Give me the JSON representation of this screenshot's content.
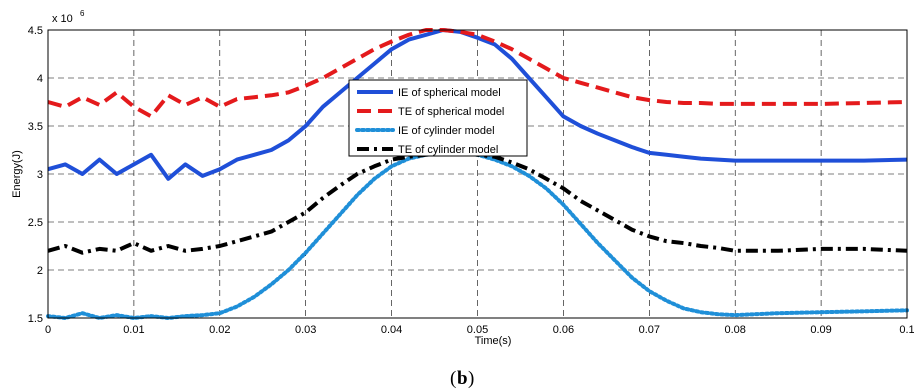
{
  "caption": {
    "open": "(",
    "letter": "b",
    "close": ")"
  },
  "chart_data": {
    "type": "line",
    "xlabel": "Time(s)",
    "ylabel": "Energy(J)",
    "y_multiplier_base": "x 10",
    "y_multiplier_exp": "6",
    "xlim": [
      0,
      0.1
    ],
    "ylim": [
      1.5,
      4.5
    ],
    "xticks": [
      "0",
      "0.01",
      "0.02",
      "0.03",
      "0.04",
      "0.05",
      "0.06",
      "0.07",
      "0.08",
      "0.09",
      "0.1"
    ],
    "yticks": [
      "1.5",
      "2",
      "2.5",
      "3",
      "3.5",
      "4",
      "4.5"
    ],
    "grid": true,
    "legend_position": "inside-top-center",
    "series": [
      {
        "name": "IE of spherical model",
        "color": "#1f4fd8",
        "style": "solid",
        "x": [
          0,
          0.002,
          0.004,
          0.006,
          0.008,
          0.01,
          0.012,
          0.014,
          0.016,
          0.018,
          0.02,
          0.022,
          0.024,
          0.026,
          0.028,
          0.03,
          0.032,
          0.034,
          0.036,
          0.038,
          0.04,
          0.042,
          0.044,
          0.046,
          0.048,
          0.05,
          0.052,
          0.054,
          0.056,
          0.058,
          0.06,
          0.062,
          0.064,
          0.066,
          0.068,
          0.07,
          0.072,
          0.074,
          0.076,
          0.078,
          0.08,
          0.085,
          0.09,
          0.095,
          0.1
        ],
        "y": [
          3.05,
          3.1,
          3.0,
          3.15,
          3.0,
          3.1,
          3.2,
          2.95,
          3.1,
          2.98,
          3.05,
          3.15,
          3.2,
          3.25,
          3.35,
          3.5,
          3.7,
          3.85,
          4.0,
          4.15,
          4.3,
          4.4,
          4.45,
          4.5,
          4.48,
          4.42,
          4.35,
          4.2,
          4.0,
          3.8,
          3.6,
          3.5,
          3.42,
          3.35,
          3.28,
          3.22,
          3.2,
          3.18,
          3.16,
          3.15,
          3.14,
          3.14,
          3.14,
          3.14,
          3.15
        ]
      },
      {
        "name": "TE of spherical model",
        "color": "#e41a1c",
        "style": "dashed",
        "x": [
          0,
          0.002,
          0.004,
          0.006,
          0.008,
          0.01,
          0.012,
          0.014,
          0.016,
          0.018,
          0.02,
          0.022,
          0.024,
          0.026,
          0.028,
          0.03,
          0.032,
          0.034,
          0.036,
          0.038,
          0.04,
          0.042,
          0.044,
          0.046,
          0.048,
          0.05,
          0.052,
          0.054,
          0.056,
          0.058,
          0.06,
          0.062,
          0.064,
          0.066,
          0.068,
          0.07,
          0.072,
          0.074,
          0.076,
          0.078,
          0.08,
          0.085,
          0.09,
          0.095,
          0.1
        ],
        "y": [
          3.75,
          3.7,
          3.8,
          3.72,
          3.85,
          3.7,
          3.6,
          3.82,
          3.72,
          3.8,
          3.7,
          3.78,
          3.8,
          3.82,
          3.85,
          3.92,
          4.0,
          4.1,
          4.2,
          4.3,
          4.38,
          4.45,
          4.5,
          4.5,
          4.48,
          4.45,
          4.38,
          4.3,
          4.2,
          4.1,
          4.0,
          3.95,
          3.9,
          3.85,
          3.8,
          3.77,
          3.75,
          3.74,
          3.74,
          3.73,
          3.73,
          3.73,
          3.73,
          3.74,
          3.75
        ]
      },
      {
        "name": "IE of cylinder model",
        "color": "#1f8fd8",
        "style": "dotted",
        "x": [
          0,
          0.002,
          0.004,
          0.006,
          0.008,
          0.01,
          0.012,
          0.014,
          0.016,
          0.018,
          0.02,
          0.022,
          0.024,
          0.026,
          0.028,
          0.03,
          0.032,
          0.034,
          0.036,
          0.038,
          0.04,
          0.042,
          0.044,
          0.046,
          0.048,
          0.05,
          0.052,
          0.054,
          0.056,
          0.058,
          0.06,
          0.062,
          0.064,
          0.066,
          0.068,
          0.07,
          0.072,
          0.074,
          0.076,
          0.078,
          0.08,
          0.085,
          0.09,
          0.095,
          0.1
        ],
        "y": [
          1.52,
          1.5,
          1.55,
          1.5,
          1.53,
          1.5,
          1.52,
          1.5,
          1.52,
          1.53,
          1.55,
          1.62,
          1.72,
          1.85,
          2.0,
          2.18,
          2.38,
          2.58,
          2.78,
          2.95,
          3.08,
          3.16,
          3.2,
          3.22,
          3.22,
          3.2,
          3.15,
          3.08,
          2.98,
          2.85,
          2.68,
          2.48,
          2.28,
          2.1,
          1.92,
          1.78,
          1.68,
          1.6,
          1.56,
          1.54,
          1.53,
          1.55,
          1.56,
          1.57,
          1.58
        ]
      },
      {
        "name": "TE of cylinder model",
        "color": "#000000",
        "style": "dashdot",
        "x": [
          0,
          0.002,
          0.004,
          0.006,
          0.008,
          0.01,
          0.012,
          0.014,
          0.016,
          0.018,
          0.02,
          0.022,
          0.024,
          0.026,
          0.028,
          0.03,
          0.032,
          0.034,
          0.036,
          0.038,
          0.04,
          0.042,
          0.044,
          0.046,
          0.048,
          0.05,
          0.052,
          0.054,
          0.056,
          0.058,
          0.06,
          0.062,
          0.064,
          0.066,
          0.068,
          0.07,
          0.072,
          0.074,
          0.076,
          0.078,
          0.08,
          0.085,
          0.09,
          0.095,
          0.1
        ],
        "y": [
          2.2,
          2.25,
          2.18,
          2.22,
          2.2,
          2.28,
          2.2,
          2.25,
          2.2,
          2.22,
          2.25,
          2.3,
          2.35,
          2.4,
          2.5,
          2.6,
          2.75,
          2.88,
          3.0,
          3.08,
          3.15,
          3.18,
          3.2,
          3.22,
          3.22,
          3.2,
          3.18,
          3.12,
          3.05,
          2.95,
          2.85,
          2.72,
          2.62,
          2.52,
          2.42,
          2.35,
          2.3,
          2.28,
          2.25,
          2.23,
          2.2,
          2.2,
          2.22,
          2.22,
          2.2
        ]
      }
    ]
  }
}
